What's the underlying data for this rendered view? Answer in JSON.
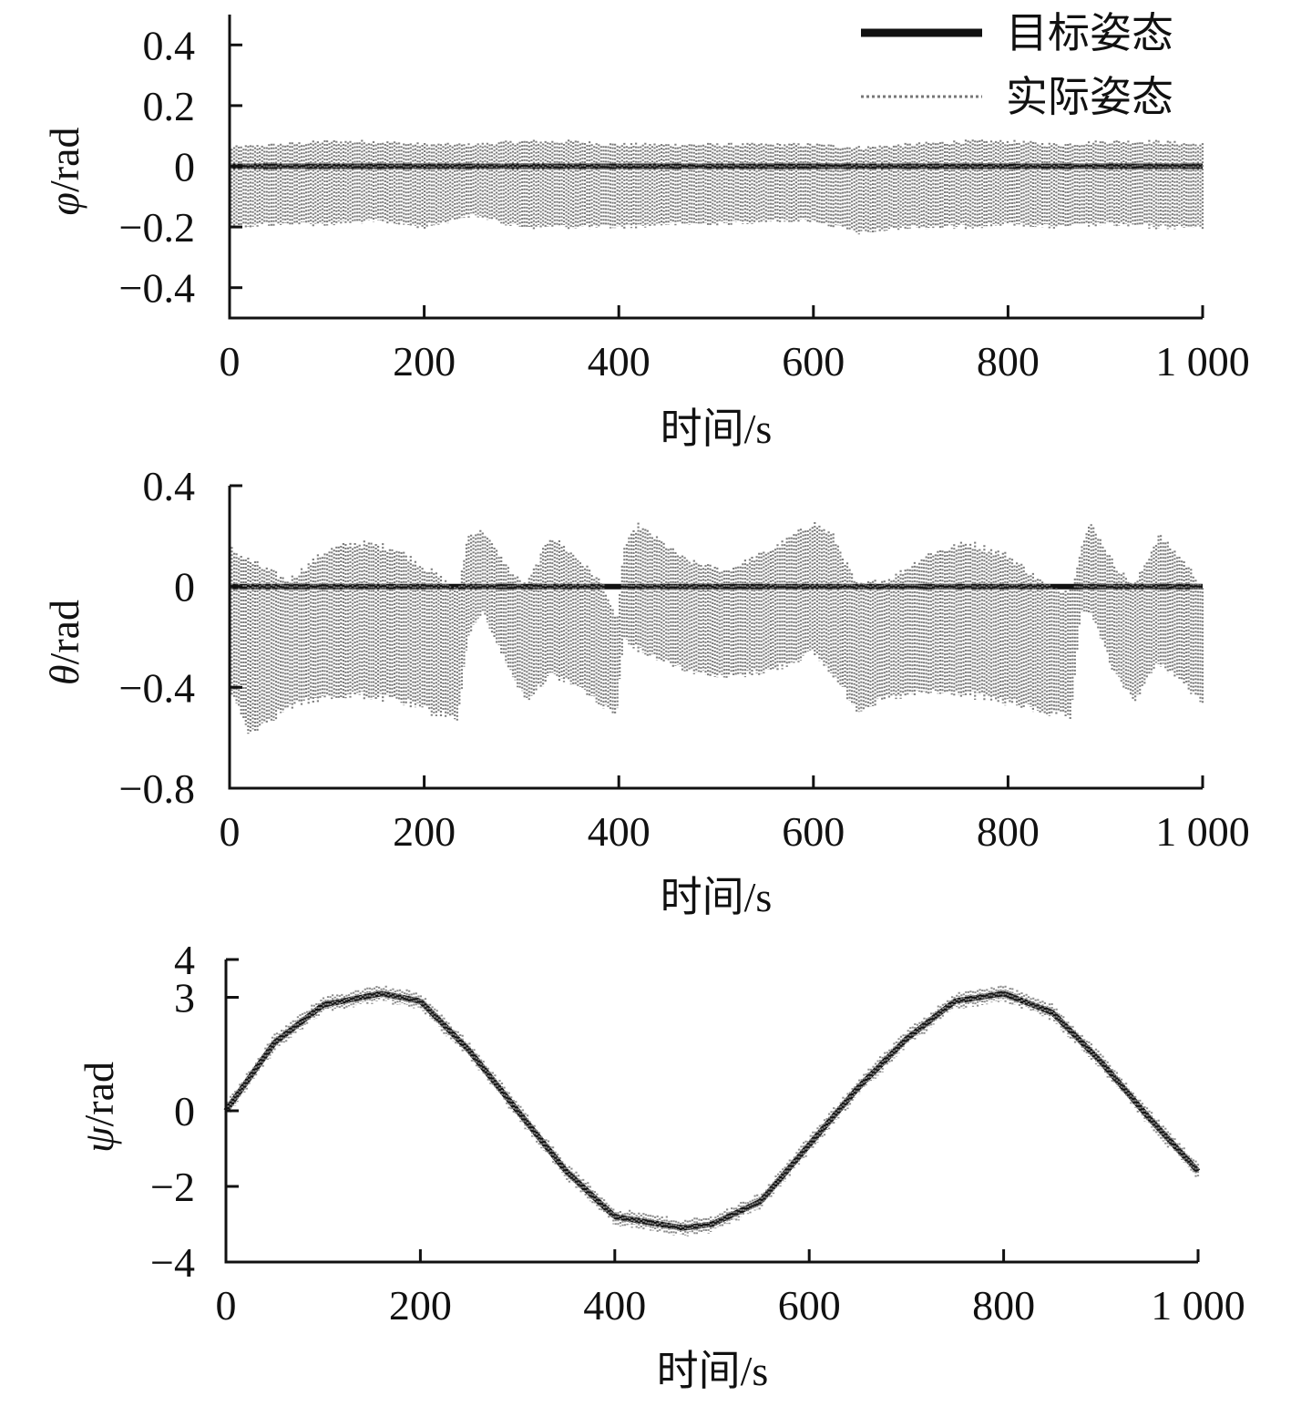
{
  "legend": {
    "target_label": "目标姿态",
    "actual_label": "实际姿态"
  },
  "chart_data": [
    {
      "type": "line",
      "id": "roll",
      "xlabel": "时间/s",
      "ylabel_symbol": "φ",
      "ylabel_unit": "/rad",
      "xlim": [
        0,
        1000
      ],
      "ylim": [
        -0.5,
        0.5
      ],
      "xticks": [
        0,
        200,
        400,
        600,
        800,
        1000
      ],
      "xtick_labels": [
        "0",
        "200",
        "400",
        "600",
        "800",
        "1 000"
      ],
      "yticks": [
        0.4,
        0.2,
        0,
        -0.2,
        -0.4
      ],
      "ytick_labels": [
        "0.4",
        "0.2",
        "0",
        "−0.2",
        "−0.4"
      ],
      "series": [
        {
          "name": "目标姿态",
          "style": "solid",
          "color": "#111111",
          "x": [
            0,
            1000
          ],
          "y": [
            0,
            0
          ]
        },
        {
          "name": "实际姿态",
          "style": "dotted-band",
          "color": "#777777",
          "x": [
            0,
            50,
            100,
            150,
            200,
            250,
            300,
            350,
            400,
            450,
            500,
            550,
            600,
            650,
            700,
            750,
            800,
            850,
            900,
            950,
            1000
          ],
          "upper": [
            0.06,
            0.07,
            0.08,
            0.08,
            0.07,
            0.07,
            0.08,
            0.08,
            0.07,
            0.07,
            0.07,
            0.07,
            0.07,
            0.06,
            0.07,
            0.08,
            0.08,
            0.07,
            0.08,
            0.08,
            0.07
          ],
          "lower": [
            -0.2,
            -0.19,
            -0.19,
            -0.18,
            -0.2,
            -0.16,
            -0.2,
            -0.2,
            -0.2,
            -0.19,
            -0.19,
            -0.18,
            -0.18,
            -0.22,
            -0.2,
            -0.2,
            -0.19,
            -0.2,
            -0.19,
            -0.2,
            -0.2
          ]
        }
      ]
    },
    {
      "type": "line",
      "id": "pitch",
      "xlabel": "时间/s",
      "ylabel_symbol": "θ",
      "ylabel_unit": "/rad",
      "xlim": [
        0,
        1000
      ],
      "ylim": [
        -0.8,
        0.4
      ],
      "xticks": [
        0,
        200,
        400,
        600,
        800,
        1000
      ],
      "xtick_labels": [
        "0",
        "200",
        "400",
        "600",
        "800",
        "1 000"
      ],
      "yticks": [
        0.4,
        0,
        -0.4,
        -0.8
      ],
      "ytick_labels": [
        "0.4",
        "0",
        "−0.4",
        "−0.8"
      ],
      "series": [
        {
          "name": "目标姿态",
          "style": "solid",
          "color": "#111111",
          "x": [
            0,
            1000
          ],
          "y": [
            0,
            0
          ]
        },
        {
          "name": "实际姿态",
          "style": "dotted-band",
          "color": "#777777",
          "x": [
            0,
            20,
            60,
            100,
            130,
            170,
            210,
            235,
            245,
            260,
            290,
            305,
            330,
            360,
            385,
            398,
            405,
            420,
            470,
            510,
            560,
            600,
            620,
            645,
            680,
            720,
            760,
            800,
            840,
            865,
            875,
            885,
            910,
            930,
            955,
            980,
            1000
          ],
          "upper": [
            0.15,
            0.1,
            0.02,
            0.14,
            0.17,
            0.15,
            0.05,
            -0.02,
            0.2,
            0.22,
            0.05,
            0.0,
            0.2,
            0.1,
            0.0,
            -0.15,
            0.15,
            0.24,
            0.1,
            0.06,
            0.15,
            0.25,
            0.2,
            0.0,
            0.03,
            0.13,
            0.17,
            0.12,
            0.0,
            -0.02,
            0.15,
            0.25,
            0.08,
            0.0,
            0.2,
            0.1,
            0.0
          ],
          "lower": [
            -0.4,
            -0.58,
            -0.48,
            -0.44,
            -0.43,
            -0.45,
            -0.5,
            -0.52,
            -0.2,
            -0.1,
            -0.35,
            -0.45,
            -0.35,
            -0.4,
            -0.48,
            -0.5,
            -0.2,
            -0.25,
            -0.33,
            -0.36,
            -0.33,
            -0.26,
            -0.35,
            -0.49,
            -0.44,
            -0.42,
            -0.43,
            -0.46,
            -0.5,
            -0.52,
            -0.1,
            -0.1,
            -0.35,
            -0.45,
            -0.3,
            -0.38,
            -0.47
          ]
        }
      ]
    },
    {
      "type": "line",
      "id": "yaw",
      "xlabel": "时间/s",
      "ylabel_symbol": "ψ",
      "ylabel_unit": "/rad",
      "xlim": [
        0,
        1000
      ],
      "ylim": [
        -4,
        4
      ],
      "xticks": [
        0,
        200,
        400,
        600,
        800,
        1000
      ],
      "xtick_labels": [
        "0",
        "200",
        "400",
        "600",
        "800",
        "1 000"
      ],
      "yticks": [
        4,
        3,
        0,
        -2,
        -4
      ],
      "ytick_labels": [
        "4",
        "3",
        "0",
        "−2",
        "−4"
      ],
      "series": [
        {
          "name": "目标姿态",
          "style": "solid",
          "color": "#111111",
          "x": [
            0,
            50,
            100,
            160,
            200,
            250,
            300,
            350,
            400,
            470,
            500,
            550,
            600,
            650,
            700,
            750,
            800,
            850,
            900,
            950,
            1000
          ],
          "y": [
            0.0,
            1.8,
            2.8,
            3.1,
            2.9,
            1.6,
            0.0,
            -1.6,
            -2.8,
            -3.1,
            -3.0,
            -2.4,
            -0.9,
            0.6,
            1.9,
            2.9,
            3.1,
            2.6,
            1.3,
            -0.2,
            -1.6
          ]
        },
        {
          "name": "实际姿态",
          "style": "dotted-band",
          "color": "#888888",
          "x": [
            0,
            50,
            100,
            160,
            200,
            250,
            300,
            350,
            400,
            470,
            500,
            550,
            600,
            650,
            700,
            750,
            800,
            850,
            900,
            950,
            1000
          ],
          "y": [
            0.0,
            1.8,
            2.8,
            3.1,
            2.9,
            1.6,
            0.0,
            -1.6,
            -2.8,
            -3.1,
            -3.0,
            -2.4,
            -0.9,
            0.6,
            1.9,
            2.9,
            3.1,
            2.6,
            1.3,
            -0.2,
            -1.6
          ],
          "spread": 0.2
        }
      ]
    }
  ]
}
